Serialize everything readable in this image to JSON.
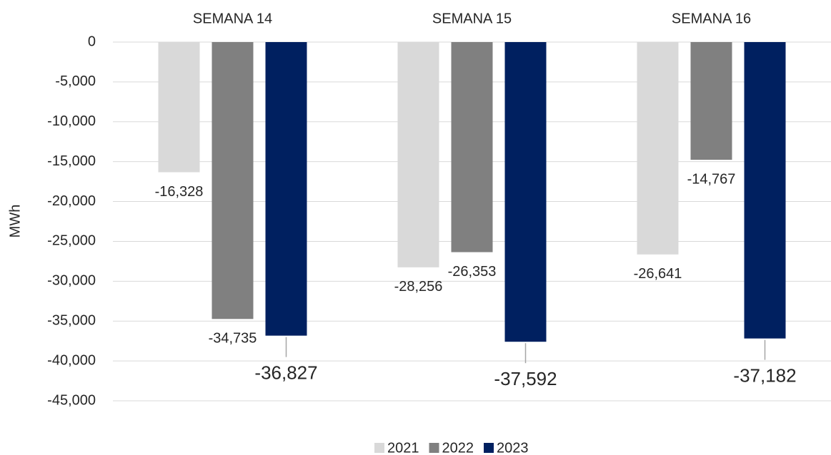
{
  "chart_data": {
    "type": "bar",
    "y_label": "MWh",
    "categories": [
      "SEMANA 14",
      "SEMANA 15",
      "SEMANA 16"
    ],
    "series": [
      {
        "name": "2021",
        "color": "#d9d9d9",
        "values": [
          -16328,
          -28256,
          -26641
        ],
        "value_labels": [
          "-16,328",
          "-28,256",
          "-26,641"
        ]
      },
      {
        "name": "2022",
        "color": "#808080",
        "values": [
          -34735,
          -26353,
          -14767
        ],
        "value_labels": [
          "-34,735",
          "-26,353",
          "-14,767"
        ]
      },
      {
        "name": "2023",
        "color": "#002060",
        "values": [
          -36827,
          -37592,
          -37182
        ],
        "value_labels": [
          "-36,827",
          "-37,592",
          "-37,182"
        ]
      }
    ],
    "ylim": [
      -45000,
      0
    ],
    "yticks": [
      0,
      {
        "value": -5000,
        "label": "-5,000"
      },
      {
        "value": -10000,
        "label": "-10,000"
      },
      {
        "value": -15000,
        "label": "-15,000"
      },
      {
        "value": -20000,
        "label": "-20,000"
      },
      {
        "value": -25000,
        "label": "-25,000"
      },
      {
        "value": -30000,
        "label": "-30,000"
      },
      {
        "value": -35000,
        "label": "-35,000"
      },
      {
        "value": -40000,
        "label": "-40,000"
      },
      {
        "value": -45000,
        "label": "-45,000"
      }
    ],
    "grid": true,
    "legend": "bottom"
  }
}
